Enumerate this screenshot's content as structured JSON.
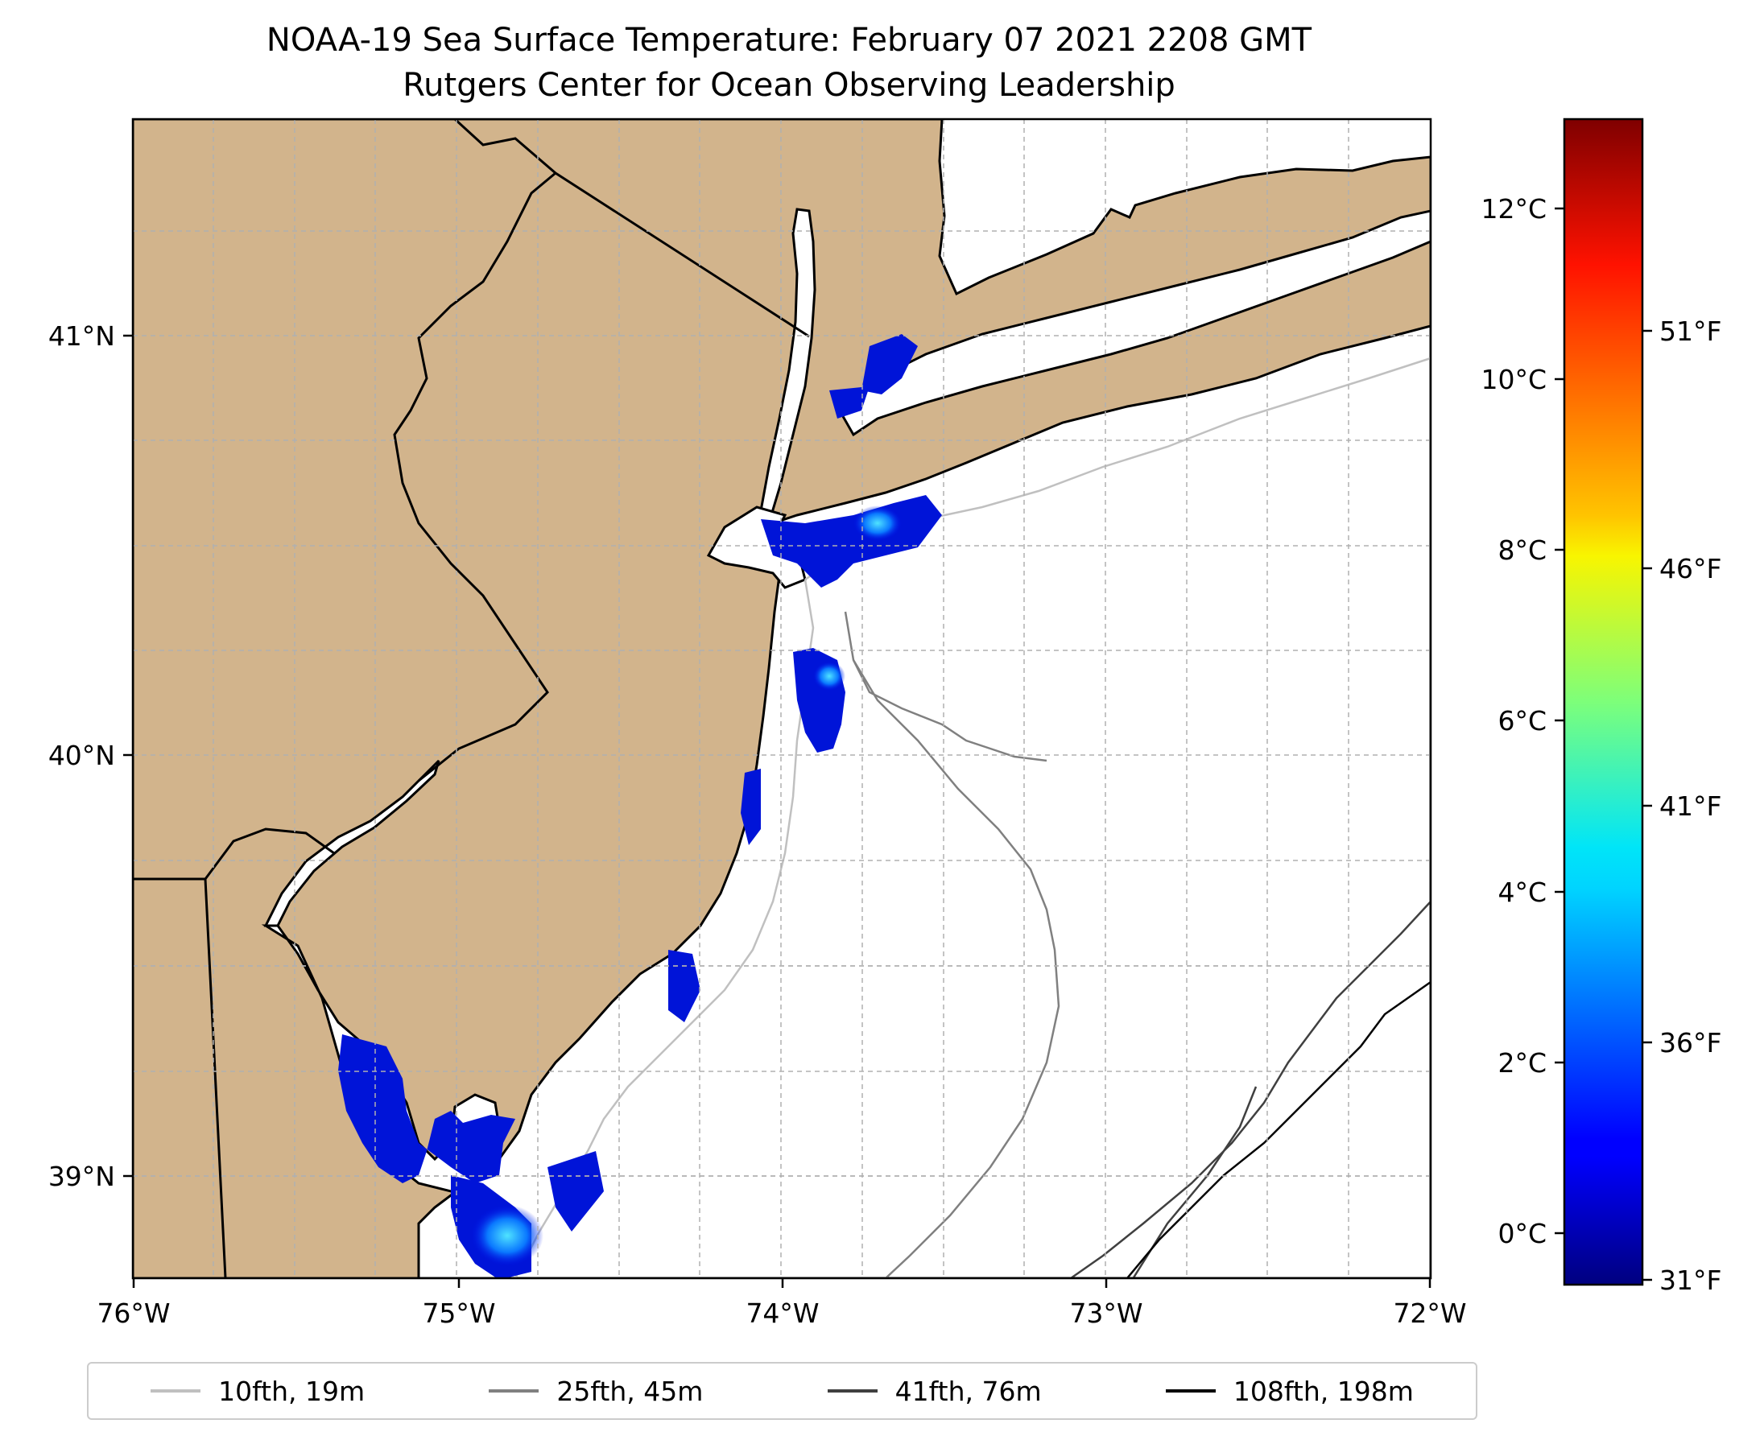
{
  "title": {
    "line1": "NOAA-19 Sea Surface Temperature: February 07 2021 2208 GMT",
    "line2": "Rutgers Center for Ocean Observing Leadership"
  },
  "map": {
    "lon_range": [
      -76,
      -72
    ],
    "lat_range": [
      38.75,
      41.5
    ],
    "lon_ticks": [
      "76°W",
      "75°W",
      "74°W",
      "73°W",
      "72°W"
    ],
    "lat_ticks": [
      "39°N",
      "40°N",
      "41°N"
    ],
    "gridlines": true,
    "land_color": "#d2b48c",
    "ocean_color": "#ffffff"
  },
  "colorbar": {
    "colormap": "jet",
    "celsius_ticks": [
      "0°C",
      "2°C",
      "4°C",
      "6°C",
      "8°C",
      "10°C",
      "12°C"
    ],
    "fahrenheit_ticks": [
      "31°F",
      "36°F",
      "41°F",
      "46°F",
      "51°F"
    ],
    "range_c": [
      -0.5,
      13.2
    ]
  },
  "legend": {
    "items": [
      {
        "label": "10fth, 19m",
        "color": "#c0c0c0"
      },
      {
        "label": "25fth, 45m",
        "color": "#808080"
      },
      {
        "label": "41fth, 76m",
        "color": "#404040"
      },
      {
        "label": "108fth, 198m",
        "color": "#000000"
      }
    ]
  }
}
